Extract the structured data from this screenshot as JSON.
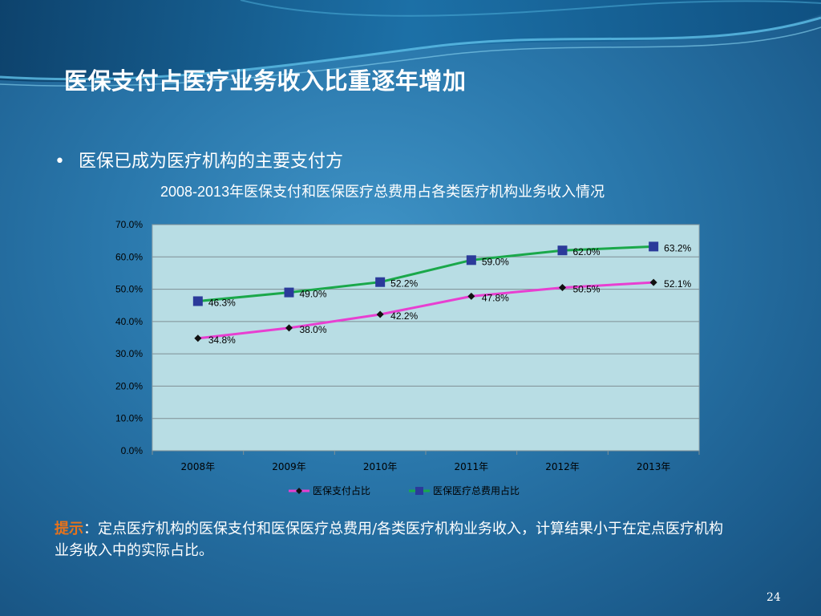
{
  "slide": {
    "title": "医保支付占医疗业务收入比重逐年增加",
    "bullet_marker": "•",
    "bullet_text": "医保已成为医疗机构的主要支付方",
    "page_number": "24"
  },
  "chart_data": {
    "type": "line",
    "title": "2008-2013年医保支付和医保医疗总费用占各类医疗机构业务收入情况",
    "categories": [
      "2008年",
      "2009年",
      "2010年",
      "2011年",
      "2012年",
      "2013年"
    ],
    "y_ticks": [
      "0.0%",
      "10.0%",
      "20.0%",
      "30.0%",
      "40.0%",
      "50.0%",
      "60.0%",
      "70.0%"
    ],
    "ylim": [
      0,
      70
    ],
    "grid": true,
    "legend_position": "bottom",
    "series": [
      {
        "name": "医保支付占比",
        "values": [
          34.8,
          38.0,
          42.2,
          47.8,
          50.5,
          52.1
        ],
        "labels": [
          "34.8%",
          "38.0%",
          "42.2%",
          "47.8%",
          "50.5%",
          "52.1%"
        ],
        "color": "#e83fd1",
        "marker": "diamond",
        "marker_color": "#111111"
      },
      {
        "name": "医保医疗总费用占比",
        "values": [
          46.3,
          49.0,
          52.2,
          59.0,
          62.0,
          63.2
        ],
        "labels": [
          "46.3%",
          "49.0%",
          "52.2%",
          "59.0%",
          "62.0%",
          "63.2%"
        ],
        "color": "#1aa84a",
        "marker": "square",
        "marker_color": "#2b3a9a"
      }
    ],
    "plot_background": "#b8dde4"
  },
  "note": {
    "label": "提示",
    "colon": "：",
    "text": "定点医疗机构的医保支付和医保医疗总费用/各类医疗机构业务收入，计算结果小于在定点医疗机构业务收入中的实际占比。"
  }
}
